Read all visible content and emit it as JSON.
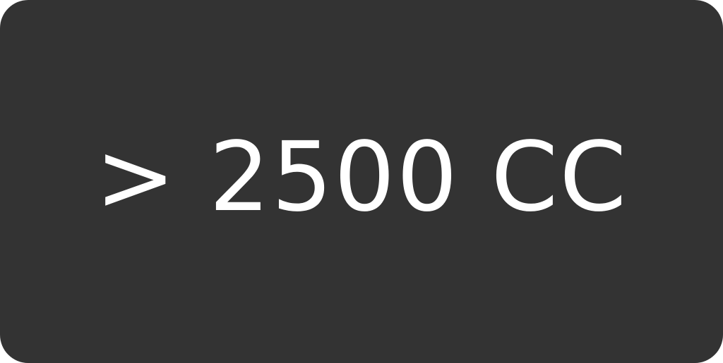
{
  "chip": {
    "label": "> 2500 CC",
    "background_color": "#333333",
    "text_color": "#ffffff"
  }
}
